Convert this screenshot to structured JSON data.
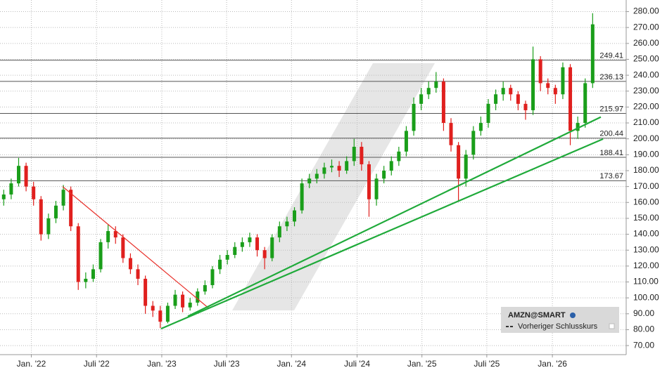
{
  "chart_data": {
    "type": "candlestick",
    "series": [
      {
        "name": "AMZN@SMART",
        "up_color": "#1a9e1a",
        "down_color": "#e0201e",
        "open": [
          162,
          165,
          172,
          183,
          170,
          162,
          140,
          150,
          158,
          168,
          145,
          110,
          112,
          118,
          135,
          142,
          138,
          125,
          118,
          112,
          95,
          92,
          85,
          95,
          102,
          94,
          97,
          104,
          108,
          118,
          124,
          127,
          132,
          135,
          138,
          130,
          125,
          138,
          145,
          148,
          155,
          172,
          175,
          178,
          182,
          183,
          180,
          186,
          195,
          184,
          162,
          175,
          180,
          186,
          192,
          205,
          222,
          228,
          232,
          236,
          210,
          196,
          175,
          190,
          205,
          210,
          222,
          228,
          232,
          228,
          222,
          218,
          250,
          235,
          232,
          228,
          245,
          205,
          210,
          235
        ],
        "high": [
          168,
          175,
          188,
          185,
          173,
          164,
          153,
          161,
          171,
          170,
          147,
          116,
          121,
          137,
          146,
          145,
          140,
          128,
          121,
          114,
          98,
          95,
          97,
          105,
          104,
          100,
          106,
          111,
          120,
          127,
          130,
          135,
          138,
          141,
          140,
          132,
          140,
          148,
          151,
          157,
          175,
          178,
          181,
          185,
          187,
          186,
          189,
          200,
          198,
          186,
          178,
          183,
          189,
          195,
          208,
          226,
          232,
          236,
          242,
          238,
          213,
          198,
          193,
          208,
          214,
          225,
          231,
          236,
          234,
          230,
          224,
          258,
          252,
          238,
          234,
          248,
          247,
          214,
          238,
          279
        ],
        "low": [
          158,
          162,
          170,
          167,
          158,
          136,
          137,
          147,
          155,
          142,
          105,
          106,
          110,
          116,
          131,
          134,
          122,
          115,
          108,
          90,
          88,
          81,
          84,
          93,
          91,
          92,
          95,
          102,
          106,
          115,
          121,
          125,
          129,
          132,
          126,
          118,
          123,
          135,
          142,
          145,
          153,
          169,
          172,
          175,
          179,
          176,
          178,
          183,
          180,
          151,
          158,
          172,
          177,
          183,
          189,
          202,
          218,
          225,
          229,
          205,
          192,
          161,
          170,
          187,
          202,
          207,
          218,
          224,
          224,
          218,
          212,
          215,
          230,
          228,
          222,
          225,
          196,
          200,
          207,
          232
        ],
        "close": [
          165,
          172,
          183,
          170,
          162,
          140,
          150,
          158,
          168,
          145,
          110,
          112,
          118,
          135,
          142,
          138,
          125,
          118,
          112,
          95,
          92,
          85,
          95,
          102,
          94,
          97,
          104,
          108,
          118,
          124,
          127,
          132,
          135,
          138,
          130,
          125,
          138,
          145,
          148,
          155,
          172,
          175,
          178,
          182,
          183,
          180,
          186,
          195,
          184,
          162,
          175,
          180,
          186,
          192,
          205,
          222,
          228,
          232,
          236,
          210,
          196,
          175,
          190,
          205,
          210,
          222,
          228,
          232,
          228,
          222,
          218,
          250,
          235,
          232,
          228,
          245,
          205,
          210,
          235,
          272
        ]
      }
    ],
    "legend_extra": "Vorheriger Schlusskurs",
    "levels": [
      249.41,
      236.13,
      215.97,
      200.44,
      188.41,
      173.67
    ],
    "trendlines": [
      {
        "color": "#e8302a",
        "x": [
          7.9,
          27.5
        ],
        "y": [
          170,
          93.5
        ]
      },
      {
        "color": "#1faa3a",
        "x": [
          24.7,
          80.1
        ],
        "y": [
          88.4,
          213.7
        ]
      },
      {
        "color": "#1faa3a",
        "x": [
          21.1,
          80.4
        ],
        "y": [
          80.6,
          199.9
        ]
      }
    ],
    "xlim": [
      -0.5,
      83.5
    ],
    "xticks": [
      {
        "value": 3.7,
        "label": "Jan. '22"
      },
      {
        "value": 12.45,
        "label": "Juli '22"
      },
      {
        "value": 21.2,
        "label": "Jan. '23"
      },
      {
        "value": 29.9,
        "label": "Juli '23"
      },
      {
        "value": 38.6,
        "label": "Jan. '24"
      },
      {
        "value": 47.4,
        "label": "Juli '24"
      },
      {
        "value": 56.1,
        "label": "Jan. '25"
      },
      {
        "value": 64.8,
        "label": "Juli '25"
      },
      {
        "value": 73.6,
        "label": "Jan. '26"
      }
    ],
    "ylim": [
      64.3,
      287.3
    ],
    "yticks": [
      {
        "value": 70,
        "label": "70.00"
      },
      {
        "value": 80,
        "label": "80.00"
      },
      {
        "value": 90,
        "label": "90.00"
      },
      {
        "value": 100,
        "label": "100.00"
      },
      {
        "value": 110,
        "label": "110.00"
      },
      {
        "value": 120,
        "label": "120.00"
      },
      {
        "value": 130,
        "label": "130.00"
      },
      {
        "value": 140,
        "label": "140.00"
      },
      {
        "value": 150,
        "label": "150.00"
      },
      {
        "value": 160,
        "label": "160.00"
      },
      {
        "value": 170,
        "label": "170.00"
      },
      {
        "value": 180,
        "label": "180.00"
      },
      {
        "value": 190,
        "label": "190.00"
      },
      {
        "value": 200,
        "label": "200.00"
      },
      {
        "value": 210,
        "label": "210.00"
      },
      {
        "value": 220,
        "label": "220.00"
      },
      {
        "value": 230,
        "label": "230.00"
      },
      {
        "value": 240,
        "label": "240.00"
      },
      {
        "value": 250,
        "label": "250.00"
      },
      {
        "value": 260,
        "label": "260.00"
      },
      {
        "value": 270,
        "label": "270.00"
      },
      {
        "value": 280,
        "label": "280.00"
      }
    ],
    "grid": true
  }
}
